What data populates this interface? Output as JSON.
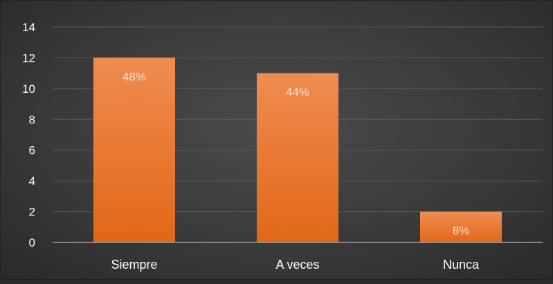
{
  "chart_data": {
    "type": "bar",
    "categories": [
      "Siempre",
      "A veces",
      "Nunca"
    ],
    "values": [
      12,
      11,
      2
    ],
    "data_labels": [
      "48%",
      "44%",
      "8%"
    ],
    "ylim": [
      0,
      14
    ],
    "y_ticks": [
      0,
      2,
      4,
      6,
      8,
      10,
      12,
      14
    ],
    "grid": true,
    "legend": "none",
    "colors": {
      "bar_top": "#F08C50",
      "bar_bottom": "#E26718",
      "grid": "#5a5a5a",
      "axis": "#a0a0a0",
      "tick_text": "#ffffff",
      "data_label_text": "#fbe2cf"
    }
  }
}
